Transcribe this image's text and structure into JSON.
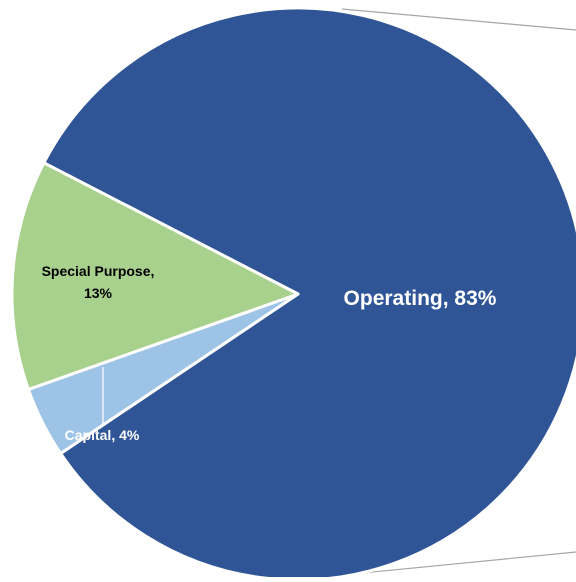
{
  "chart_data": {
    "type": "pie",
    "title": "",
    "slices": [
      {
        "label": "Operating",
        "value": 83,
        "display": "Operating, 83%",
        "color": "#2f5597",
        "text_color": "#ffffff"
      },
      {
        "label": "Capital",
        "value": 4,
        "display": "Capital, 4%",
        "color": "#9dc3e6",
        "text_color": "#ffffff"
      },
      {
        "label": "Special Purpose",
        "value": 13,
        "display_lines": [
          "Special Purpose,",
          "13%"
        ],
        "color": "#a9d18e",
        "text_color": "#000000"
      }
    ],
    "unit": "%",
    "legend": "none",
    "connector_line_color": "#a6a6a6"
  }
}
